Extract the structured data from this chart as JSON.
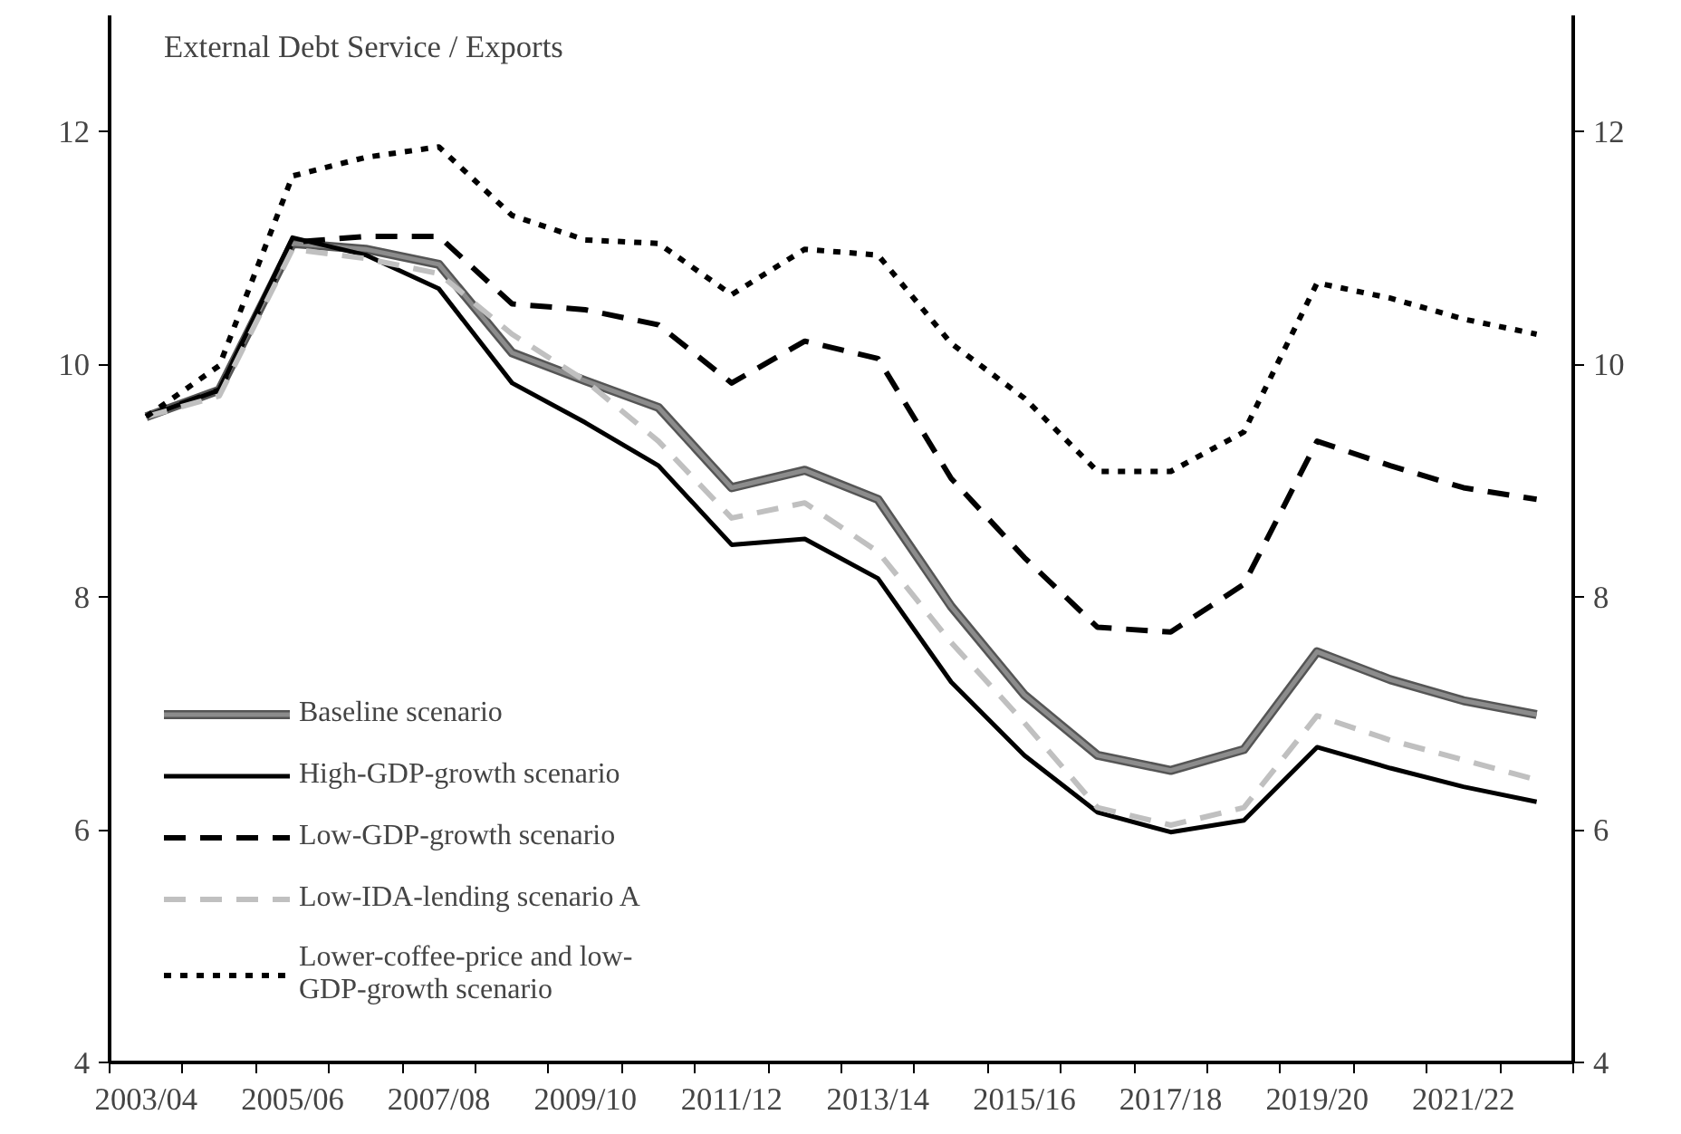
{
  "chart_data": {
    "type": "line",
    "title": "External Debt Service / Exports",
    "categories": [
      "2003/04",
      null,
      "2005/06",
      null,
      "2007/08",
      null,
      "2009/10",
      null,
      "2011/12",
      null,
      "2013/14",
      null,
      "2015/16",
      null,
      "2017/18",
      null,
      "2019/20",
      null,
      "2021/22",
      null
    ],
    "series": [
      {
        "name": "Baseline scenario",
        "color": "#8c8c8c",
        "line_style": "solid",
        "values": [
          9.55,
          9.78,
          11.04,
          10.99,
          10.86,
          10.1,
          9.86,
          9.63,
          8.94,
          9.09,
          8.84,
          7.92,
          7.16,
          6.64,
          6.51,
          6.69,
          7.53,
          7.29,
          7.11,
          6.99
        ]
      },
      {
        "name": "High-GDP-growth scenario",
        "color": "#000000",
        "line_style": "solid",
        "values": [
          9.55,
          9.78,
          11.09,
          10.94,
          10.65,
          9.84,
          9.5,
          9.13,
          8.45,
          8.5,
          8.16,
          7.27,
          6.64,
          6.15,
          5.98,
          6.08,
          6.71,
          6.53,
          6.37,
          6.24
        ]
      },
      {
        "name": "Low-GDP-growth scenario",
        "color": "#000000",
        "line_style": "dashed",
        "values": [
          9.55,
          9.78,
          11.05,
          11.1,
          11.1,
          10.52,
          10.47,
          10.34,
          9.84,
          10.2,
          10.05,
          9.02,
          8.34,
          7.74,
          7.7,
          8.11,
          9.34,
          9.13,
          8.94,
          8.84
        ]
      },
      {
        "name": "Low-IDA-lending scenario A",
        "color": "#c0c0c0",
        "line_style": "dashed",
        "values": [
          9.55,
          9.73,
          10.99,
          10.91,
          10.78,
          10.26,
          9.86,
          9.34,
          8.68,
          8.81,
          8.39,
          7.61,
          6.92,
          6.19,
          6.04,
          6.19,
          6.98,
          6.77,
          6.6,
          6.43
        ]
      },
      {
        "name": "Lower-coffee-price and low-GDP-growth scenario",
        "color": "#000000",
        "line_style": "dotted",
        "values": [
          9.55,
          9.99,
          11.62,
          11.78,
          11.87,
          11.28,
          11.07,
          11.04,
          10.6,
          10.99,
          10.94,
          10.18,
          9.71,
          9.08,
          9.08,
          9.42,
          10.7,
          10.57,
          10.39,
          10.26
        ]
      }
    ],
    "ylim": [
      4,
      13
    ],
    "yticks": [
      4,
      6,
      8,
      10,
      12
    ],
    "y2lim": [
      4,
      13
    ],
    "y2ticks": [
      4,
      6,
      8,
      10,
      12
    ],
    "grid": false,
    "legend": "bottom left",
    "marker": "none"
  }
}
